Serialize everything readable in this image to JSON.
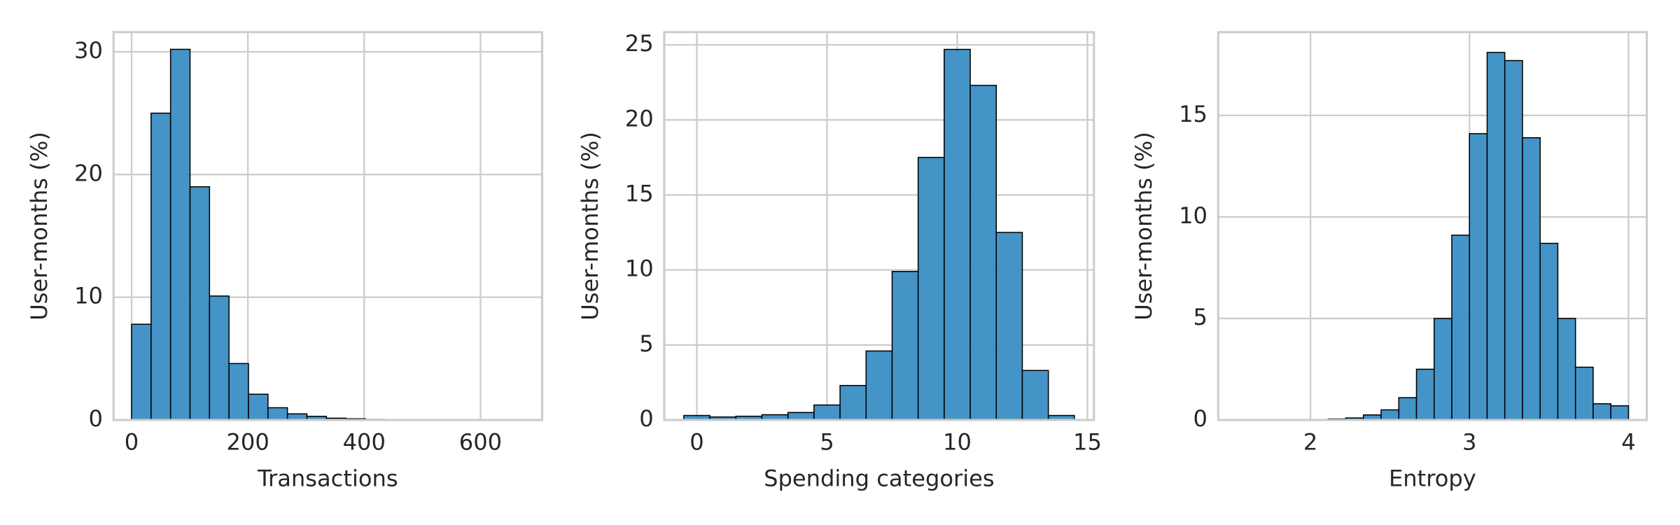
{
  "chart_data": [
    {
      "type": "histogram",
      "xlabel": "Transactions",
      "ylabel": "User-months (%)",
      "bins": [
        0,
        33.5,
        67,
        100.5,
        134,
        167.5,
        201,
        234.5,
        268,
        301.5,
        335,
        368.5,
        402,
        435.5,
        469,
        502.5,
        536,
        569.5,
        603,
        636.5,
        670
      ],
      "values": [
        7.8,
        25,
        30.2,
        19,
        10.1,
        4.6,
        2.1,
        1.0,
        0.5,
        0.3,
        0.15,
        0.1,
        0.05,
        0.03,
        0.02,
        0.01,
        0.01,
        0,
        0,
        0.01
      ],
      "color": "#3a8ec4",
      "edgecolor": "#000000",
      "xlim": [
        -31,
        706
      ],
      "ylim": [
        0,
        31.6
      ],
      "xticks": [
        0,
        200,
        400,
        600
      ],
      "yticks": [
        0,
        10,
        20,
        30
      ],
      "grid": true
    },
    {
      "type": "histogram",
      "xlabel": "Spending categories",
      "ylabel": "User-months (%)",
      "bins": [
        -0.5,
        0.5,
        1.5,
        2.5,
        3.5,
        4.5,
        5.5,
        6.5,
        7.5,
        8.5,
        9.5,
        10.5,
        11.5,
        12.5,
        13.5,
        14.5
      ],
      "values": [
        0.3,
        0.2,
        0.25,
        0.35,
        0.5,
        1.0,
        2.3,
        4.6,
        9.9,
        17.5,
        24.7,
        22.3,
        12.5,
        3.3,
        0.3
      ],
      "color": "#3a8ec4",
      "edgecolor": "#000000",
      "xlim": [
        -1.25,
        15.25
      ],
      "ylim": [
        0,
        25.85
      ],
      "xticks": [
        0,
        5,
        10,
        15
      ],
      "yticks": [
        0,
        5,
        10,
        15,
        20,
        25
      ],
      "grid": true
    },
    {
      "type": "histogram",
      "xlabel": "Entropy",
      "ylabel": "User-months (%)",
      "bins": [
        1.7778,
        1.8889,
        2.0,
        2.1111,
        2.2222,
        2.3333,
        2.4444,
        2.5556,
        2.6667,
        2.7778,
        2.8889,
        3.0,
        3.1111,
        3.2222,
        3.3333,
        3.4444,
        3.5556,
        3.6667,
        3.7778,
        3.8889,
        4.0
      ],
      "values": [
        0,
        0,
        0,
        0.05,
        0.1,
        0.25,
        0.5,
        1.1,
        2.5,
        5.0,
        9.1,
        14.1,
        18.1,
        17.7,
        13.9,
        8.7,
        5.0,
        2.6,
        0.8,
        0.7
      ],
      "color": "#3a8ec4",
      "edgecolor": "#000000",
      "xlim": [
        1.42,
        4.115
      ],
      "ylim": [
        0,
        19.1
      ],
      "xticks": [
        2,
        3,
        4
      ],
      "yticks": [
        0,
        5,
        10,
        15
      ],
      "grid": true
    }
  ]
}
